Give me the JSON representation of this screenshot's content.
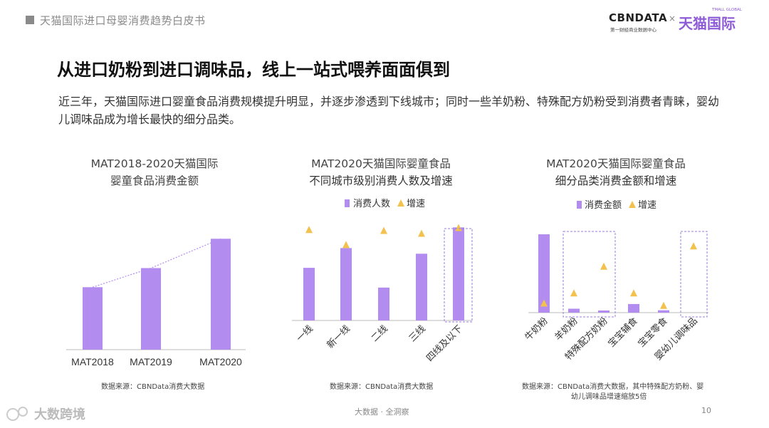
{
  "header": {
    "title": "天猫国际进口母婴消费趋势白皮书"
  },
  "logos": {
    "cbn": "CBNDATA",
    "cbn_sub": "第一财经商业数据中心",
    "separator": "×",
    "tmall": "天猫国际",
    "tmall_sub": "TMALL GLOBAL"
  },
  "main_title": "从进口奶粉到进口调味品，线上一站式喂养面面俱到",
  "description": "近三年，天猫国际进口婴童食品消费规模提升明显，并逐步渗透到下线城市；同时一些羊奶粉、特殊配方奶粉受到消费者青睐，婴幼儿调味品成为增长最快的细分品类。",
  "charts": [
    {
      "title_line1": "MAT2018-2020天猫国际",
      "title_line2": "婴童食品消费金额",
      "source": "数据来源：CBNData消费大数据"
    },
    {
      "title_line1": "MAT2020天猫国际婴童食品",
      "title_line2": "不同城市级别消费人数及增速",
      "source": "数据来源：CBNData消费大数据",
      "legend_bar": "消费人数",
      "legend_tri": "增速"
    },
    {
      "title_line1": "MAT2020天猫国际婴童食品",
      "title_line2": "细分品类消费金额和增速",
      "source_line1": "数据来源：CBNData消费大数据，其中特殊配方奶粉、婴",
      "source_line2": "幼儿调味品增速缩放5倍",
      "legend_bar": "消费金额",
      "legend_tri": "增速"
    }
  ],
  "chart_data": [
    {
      "type": "bar",
      "categories": [
        "MAT2018",
        "MAT2019",
        "MAT2020"
      ],
      "values": [
        0.49,
        0.64,
        0.87
      ]
    },
    {
      "type": "bar",
      "categories": [
        "一线",
        "新一线",
        "二线",
        "三线",
        "四线及以下"
      ],
      "series": [
        {
          "name": "消费人数",
          "values": [
            0.56,
            0.77,
            0.35,
            0.71,
            0.99
          ]
        },
        {
          "name": "增速",
          "values": [
            0.9,
            0.74,
            0.89,
            0.86,
            0.92
          ]
        }
      ]
    },
    {
      "type": "bar",
      "categories": [
        "牛奶粉",
        "羊奶粉",
        "特殊配方奶粉",
        "宝宝辅食",
        "宝宝零食",
        "婴幼儿调味品"
      ],
      "series": [
        {
          "name": "消费金额",
          "values": [
            1.0,
            0.05,
            0.02,
            0.11,
            0.03,
            0.0
          ]
        },
        {
          "name": "增速",
          "values": [
            0.15,
            0.28,
            0.62,
            0.28,
            0.12,
            0.88
          ]
        }
      ]
    }
  ],
  "footer": {
    "center": "大数据 · 全洞察",
    "page": "10",
    "watermark": "大数跨境"
  },
  "colors": {
    "bar": "#b38cf0",
    "triangle": "#f2c14e",
    "dashed_box": "#9b7ee0",
    "trend": "#b38cf0"
  }
}
